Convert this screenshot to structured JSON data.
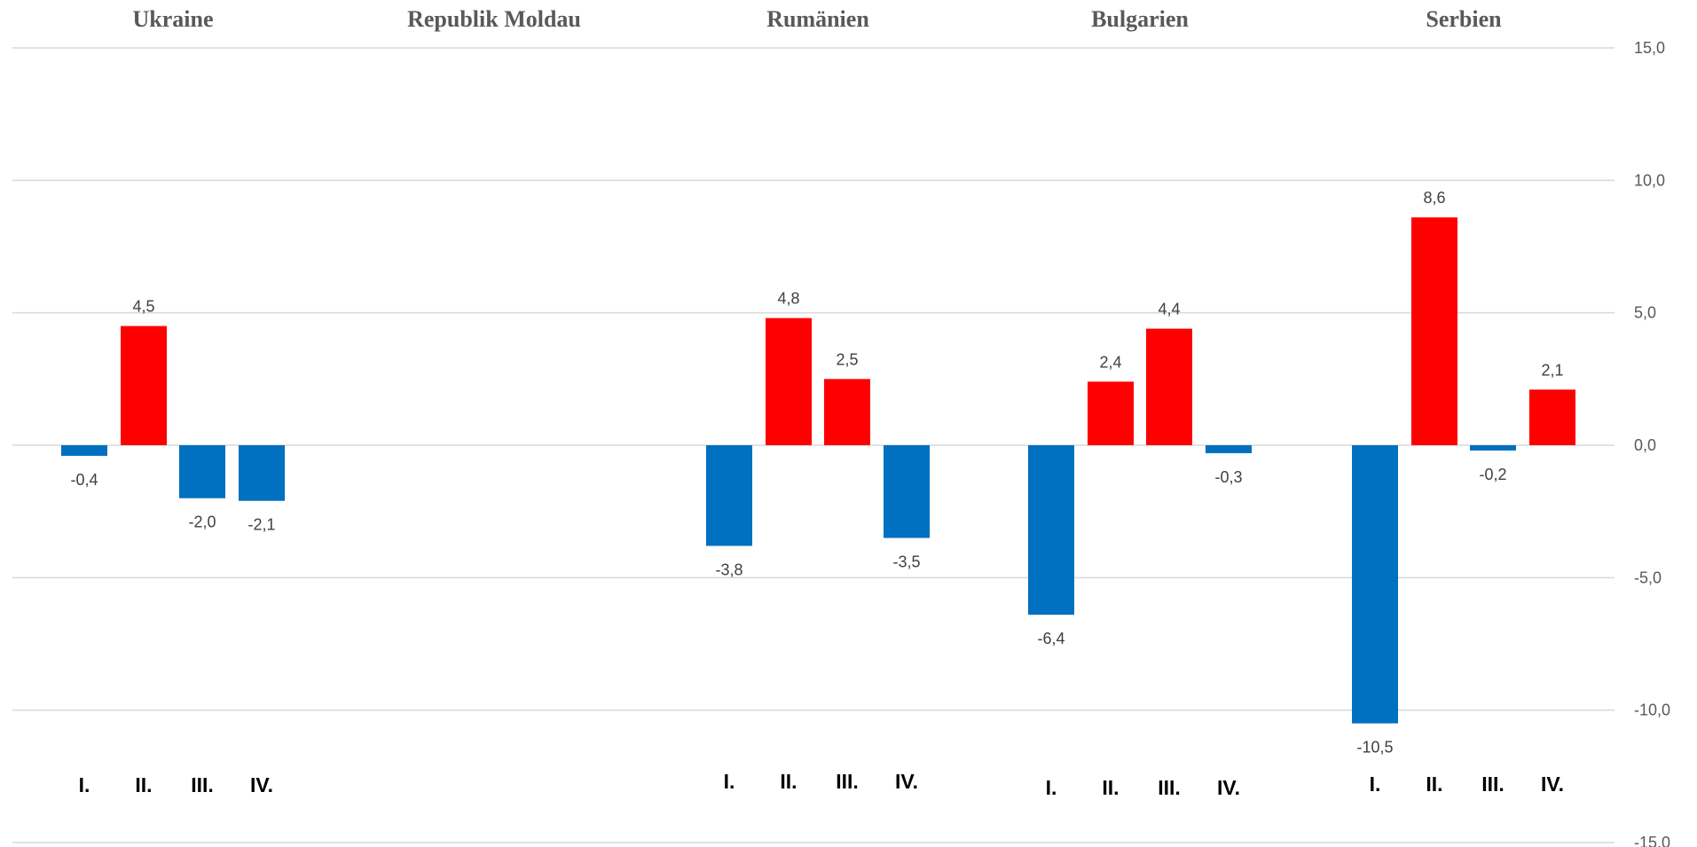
{
  "chart_data": {
    "type": "bar",
    "y_ticks": [
      "15,0",
      "10,0",
      "5,0",
      "0,0",
      "-5,0",
      "-10,0",
      "-15,0"
    ],
    "ylim": [
      -15,
      15
    ],
    "y_axis_position": "right",
    "grid": true,
    "legend": "none",
    "colors": {
      "positive": "#ff0000",
      "negative": "#0070c0"
    },
    "groups": [
      {
        "name": "Ukraine",
        "categories": [
          "I.",
          "II.",
          "III.",
          "IV."
        ],
        "values": [
          -0.4,
          4.5,
          -2.0,
          -2.1
        ],
        "labels": [
          "-0,4",
          "4,5",
          "-2,0",
          "-2,1"
        ]
      },
      {
        "name": "Republik Moldau",
        "categories": [],
        "values": [],
        "labels": []
      },
      {
        "name": "Rumänien",
        "categories": [
          "I.",
          "II.",
          "III.",
          "IV."
        ],
        "values": [
          -3.8,
          4.8,
          2.5,
          -3.5
        ],
        "labels": [
          "-3,8",
          "4,8",
          "2,5",
          "-3,5"
        ]
      },
      {
        "name": "Bulgarien",
        "categories": [
          "I.",
          "II.",
          "III.",
          "IV."
        ],
        "values": [
          -6.4,
          2.4,
          4.4,
          -0.3
        ],
        "labels": [
          "-6,4",
          "2,4",
          "4,4",
          "-0,3"
        ]
      },
      {
        "name": "Serbien",
        "categories": [
          "I.",
          "II.",
          "III.",
          "IV."
        ],
        "values": [
          -10.5,
          8.6,
          -0.2,
          2.1
        ],
        "labels": [
          "-10,5",
          "8,6",
          "-0,2",
          "2,1"
        ]
      }
    ]
  }
}
